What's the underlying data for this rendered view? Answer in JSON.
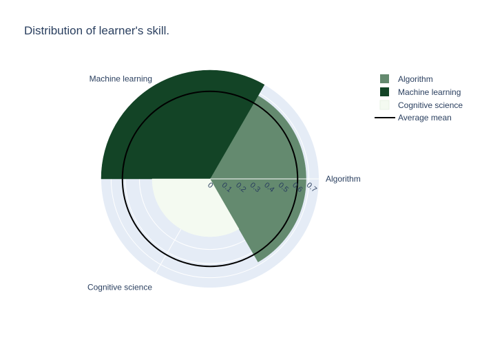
{
  "chart_data": {
    "type": "barpolar",
    "title": "Distribution of learner's skill.",
    "radial_axis": {
      "range": [
        0,
        0.77
      ],
      "ticks": [
        0,
        0.1,
        0.2,
        0.3,
        0.4,
        0.5,
        0.6,
        0.7
      ],
      "tick_labels": [
        "0",
        "0.1",
        "0.2",
        "0.3",
        "0.4",
        "0.5",
        "0.6",
        "0.7"
      ]
    },
    "angular_categories": [
      "Algorithm",
      "Machine learning",
      "Cognitive science"
    ],
    "series": [
      {
        "name": "Algorithm",
        "theta_center_deg": 0,
        "width_deg": 120,
        "r": 0.68,
        "color": "#648a6f"
      },
      {
        "name": "Machine learning",
        "theta_center_deg": 120,
        "width_deg": 120,
        "r": 0.77,
        "color": "#134426"
      },
      {
        "name": "Cognitive science",
        "theta_center_deg": 240,
        "width_deg": 120,
        "r": 0.41,
        "color": "#f4faf1"
      }
    ],
    "mean_line": {
      "name": "Average mean",
      "r": 0.62,
      "color": "#000000"
    },
    "legend_position": "top-right",
    "grid": true,
    "colors": {
      "polar_bg": "#e5ecf6",
      "grid": "#ffffff",
      "text": "#2a3f5f"
    }
  }
}
